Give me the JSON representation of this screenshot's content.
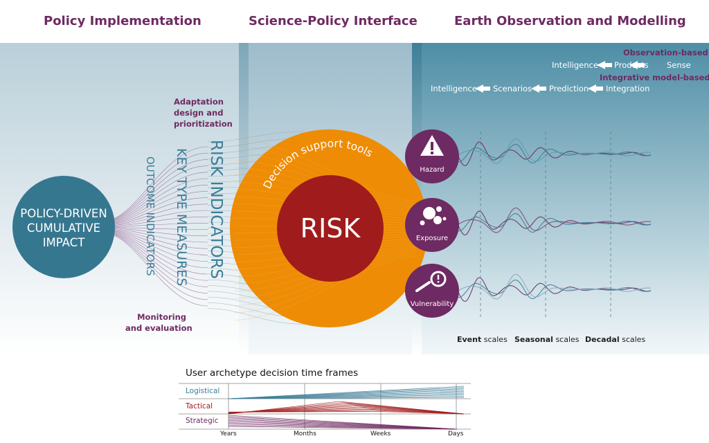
{
  "headers": {
    "policy": "Policy Implementation",
    "science": "Science-Policy Interface",
    "earth": "Earth Observation and Modelling"
  },
  "left": {
    "impact": [
      "POLICY-DRIVEN",
      "CUMULATIVE",
      "IMPACT"
    ],
    "outcome": "OUTCOME INDICATORS",
    "key_type": "KEY TYPE MEASURES",
    "risk_ind": "RISK INDICATORS",
    "adaptation": [
      "Adaptation",
      "design and",
      "prioritization"
    ],
    "monitoring": [
      "Monitoring",
      "and evaluation"
    ]
  },
  "center": {
    "risk": "RISK",
    "tools": "Decision support tools"
  },
  "risk_factors": [
    {
      "label": "Hazard",
      "icon": "warning-icon"
    },
    {
      "label": "Exposure",
      "icon": "circles-icon"
    },
    {
      "label": "Vulnerability",
      "icon": "magnifier-icon"
    }
  ],
  "chains": {
    "observation_title": "Observation-based",
    "observation": [
      "Intelligence",
      "Products",
      "Sense"
    ],
    "integrative_title": "Integrative model-based",
    "integrative": [
      "Intelligence",
      "Scenarios",
      "Prediction",
      "Integration"
    ]
  },
  "scales": {
    "event": {
      "bold": "Event",
      "rest": "scales"
    },
    "seasonal": {
      "bold": "Seasonal",
      "rest": "scales"
    },
    "decadal": {
      "bold": "Decadal",
      "rest": "scales"
    }
  },
  "timeframes": {
    "title": "User archetype decision time frames",
    "rows": [
      "Logistical",
      "Tactical",
      "Strategic"
    ],
    "ticks": [
      "Years",
      "Months",
      "Weeks",
      "Days"
    ]
  },
  "colors": {
    "plum": "#6e2a62",
    "teal": "#3b7d97",
    "orange": "#ee8c05",
    "red": "#a01b1b"
  }
}
